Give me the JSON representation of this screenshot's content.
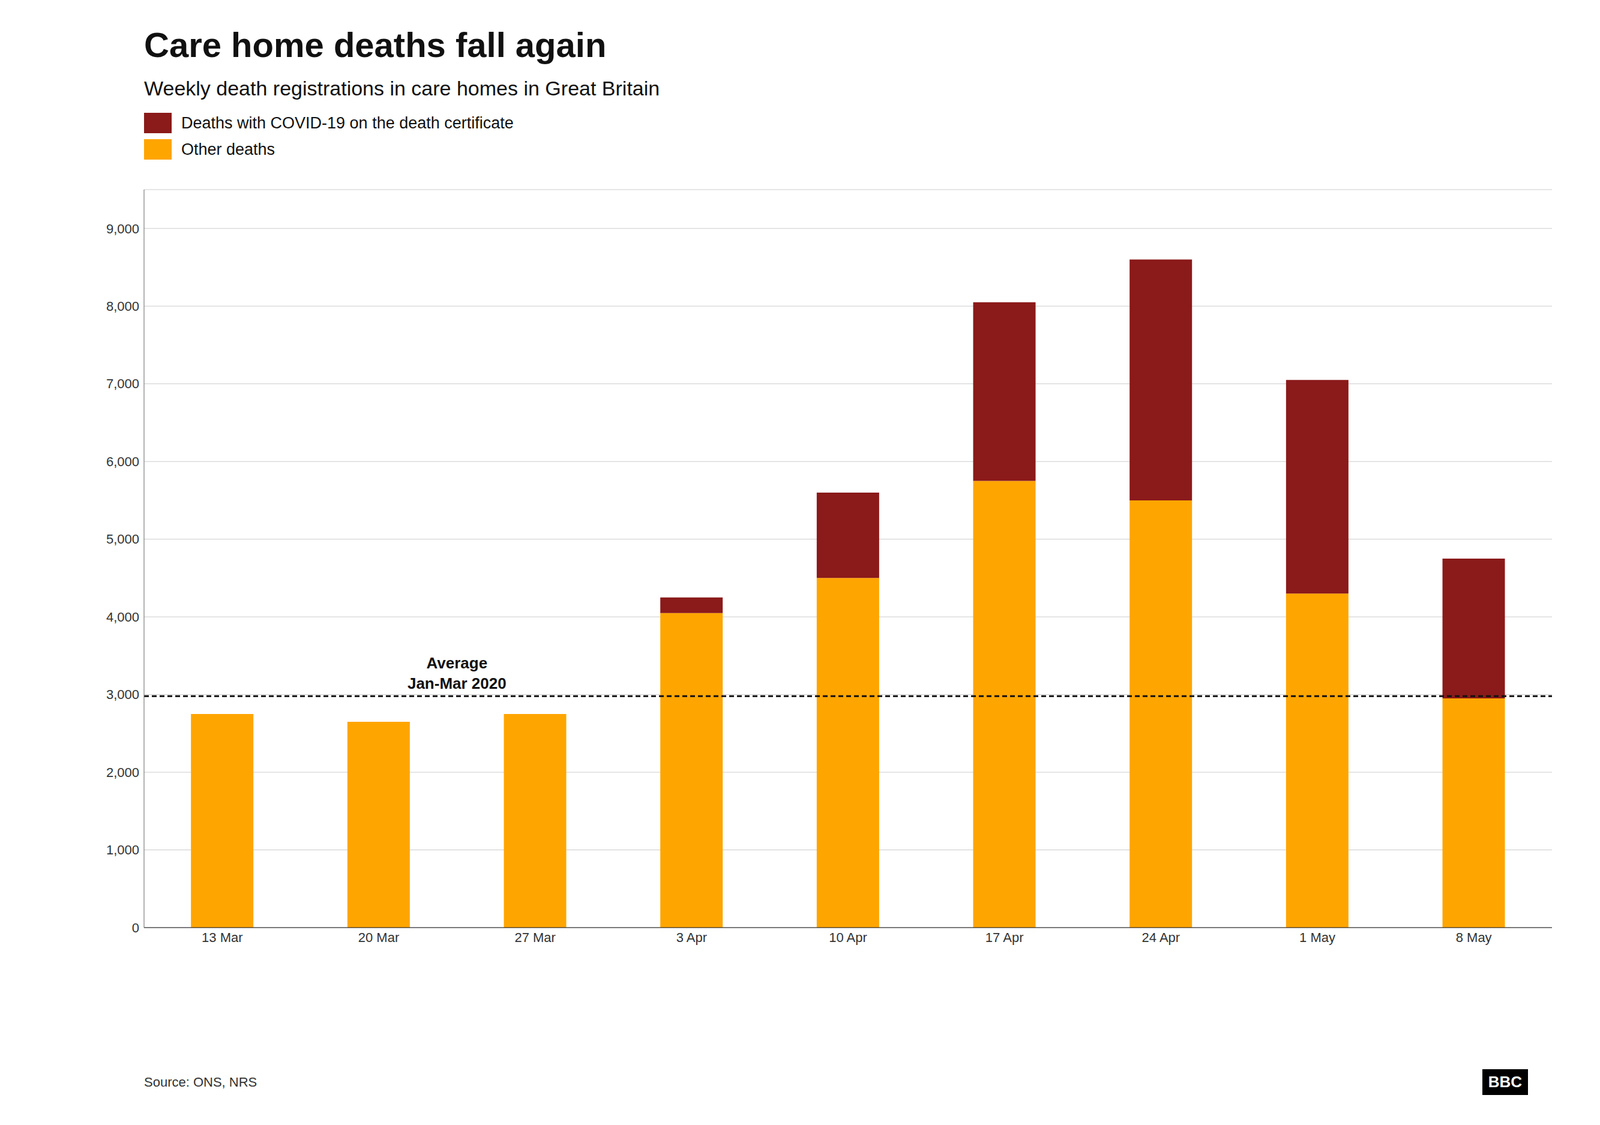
{
  "chart_data": {
    "type": "bar",
    "title": "Care home deaths fall again",
    "subtitle": "Weekly death registrations in care homes in Great Britain",
    "categories": [
      "13 Mar",
      "20 Mar",
      "27 Mar",
      "3 Apr",
      "10 Apr",
      "17 Apr",
      "24 Apr",
      "1 May",
      "8 May"
    ],
    "series": [
      {
        "name": "Other deaths",
        "color": "#FFA500",
        "values": [
          2750,
          2650,
          2750,
          4050,
          4500,
          5750,
          5500,
          4300,
          2950
        ]
      },
      {
        "name": "Deaths with COVID-19 on the death certificate",
        "color": "#8B1A1A",
        "values": [
          0,
          0,
          0,
          200,
          1100,
          2300,
          3100,
          2750,
          1800
        ]
      }
    ],
    "stacked": true,
    "ylim": [
      0,
      9500
    ],
    "yticks": [
      0,
      {
        "value": 1000,
        "label": "1,000"
      },
      {
        "value": 2000,
        "label": "2,000"
      },
      {
        "value": 3000,
        "label": "3,000"
      },
      {
        "value": 4000,
        "label": "4,000"
      },
      {
        "value": 5000,
        "label": "5,000"
      },
      {
        "value": 6000,
        "label": "6,000"
      },
      {
        "value": 7000,
        "label": "7,000"
      },
      {
        "value": 8000,
        "label": "8,000"
      },
      {
        "value": 9000,
        "label": "9,000"
      }
    ],
    "grid": true,
    "legend": "upper left",
    "average_line": {
      "value": 2980,
      "labels": [
        "Average",
        "Jan-Mar 2020"
      ],
      "color": "#111111",
      "line_style": "dashed"
    },
    "source": "Source: ONS, NRS",
    "logo": "BBC"
  }
}
